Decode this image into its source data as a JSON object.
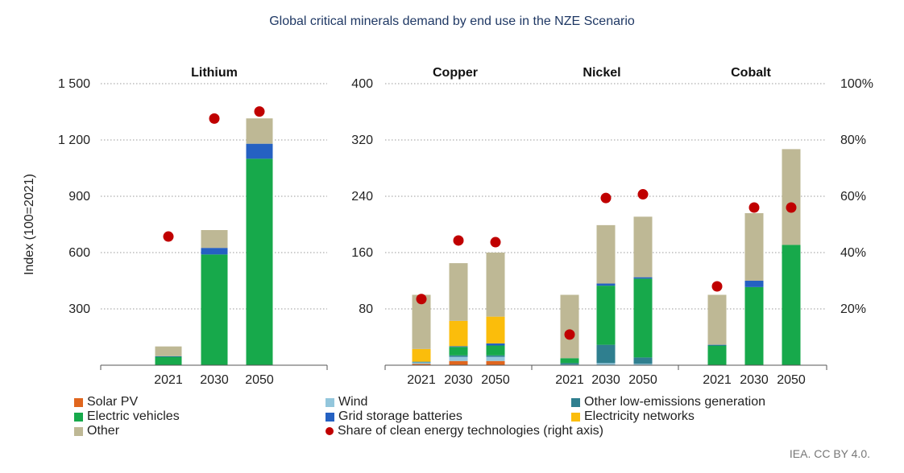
{
  "title": "Global critical minerals demand by end use in the NZE Scenario",
  "credit": "IEA. CC BY 4.0.",
  "colors": {
    "solar_pv": "#e0661e",
    "wind": "#93c6dc",
    "other_low_emissions": "#2f7f8f",
    "electric_vehicles": "#17a94b",
    "grid_storage": "#2561c2",
    "electricity_networks": "#fbbd0b",
    "other": "#beb895",
    "share": "#c00000",
    "gridline": "#999999",
    "axis": "#555555"
  },
  "legend": [
    {
      "key": "solar_pv",
      "label": "Solar PV",
      "kind": "square"
    },
    {
      "key": "wind",
      "label": "Wind",
      "kind": "square"
    },
    {
      "key": "other_low_emissions",
      "label": "Other low-emissions generation",
      "kind": "square"
    },
    {
      "key": "electric_vehicles",
      "label": "Electric vehicles",
      "kind": "square"
    },
    {
      "key": "grid_storage",
      "label": "Grid storage batteries",
      "kind": "square"
    },
    {
      "key": "electricity_networks",
      "label": "Electricity networks",
      "kind": "square"
    },
    {
      "key": "other",
      "label": "Other",
      "kind": "square"
    },
    {
      "key": "share",
      "label": "Share of clean energy technologies  (right axis)",
      "kind": "dot"
    }
  ],
  "chart_data": [
    {
      "type": "bar",
      "stacked": true,
      "panel": "Lithium",
      "ylabel": "Index (100=2021)",
      "ylim": [
        0,
        1500
      ],
      "yticks": [
        300,
        600,
        900,
        1200,
        1500
      ],
      "ytick_labels": [
        "300",
        "600",
        "900",
        "1 200",
        "1 500"
      ],
      "y2lim": [
        0,
        1
      ],
      "categories": [
        "2021",
        "2030",
        "2050"
      ],
      "series": [
        {
          "key": "solar_pv",
          "values": [
            0,
            0,
            0
          ]
        },
        {
          "key": "wind",
          "values": [
            0,
            0,
            0
          ]
        },
        {
          "key": "other_low_emissions",
          "values": [
            0,
            0,
            0
          ]
        },
        {
          "key": "electric_vehicles",
          "values": [
            45,
            590,
            1100
          ]
        },
        {
          "key": "grid_storage",
          "values": [
            3,
            35,
            80
          ]
        },
        {
          "key": "electricity_networks",
          "values": [
            0,
            0,
            0
          ]
        },
        {
          "key": "other",
          "values": [
            52,
            95,
            135
          ]
        }
      ],
      "share": [
        0.457,
        0.876,
        0.901
      ]
    },
    {
      "type": "bar",
      "stacked": true,
      "panel": "Copper",
      "ylim": [
        0,
        400
      ],
      "yticks": [
        80,
        160,
        240,
        320,
        400
      ],
      "ytick_labels": [
        "80",
        "160",
        "240",
        "320",
        "400"
      ],
      "y2lim": [
        0,
        1
      ],
      "y2ticks": [
        "20%",
        "40%",
        "60%",
        "80%",
        "100%"
      ],
      "categories": [
        "2021",
        "2030",
        "2050"
      ],
      "series": [
        {
          "key": "solar_pv",
          "values": [
            2,
            6,
            6
          ]
        },
        {
          "key": "wind",
          "values": [
            2,
            6,
            6
          ]
        },
        {
          "key": "other_low_emissions",
          "values": [
            1,
            2,
            2
          ]
        },
        {
          "key": "electric_vehicles",
          "values": [
            0,
            12,
            14
          ]
        },
        {
          "key": "grid_storage",
          "values": [
            0,
            1,
            3
          ]
        },
        {
          "key": "electricity_networks",
          "values": [
            18,
            36,
            38
          ]
        },
        {
          "key": "other",
          "values": [
            77,
            82,
            91
          ]
        }
      ],
      "share": [
        0.235,
        0.443,
        0.437
      ]
    },
    {
      "type": "bar",
      "stacked": true,
      "panel": "Nickel",
      "ylim": [
        0,
        400
      ],
      "y2lim": [
        0,
        1
      ],
      "categories": [
        "2021",
        "2030",
        "2050"
      ],
      "series": [
        {
          "key": "solar_pv",
          "values": [
            0,
            0,
            0
          ]
        },
        {
          "key": "wind",
          "values": [
            1,
            3,
            2
          ]
        },
        {
          "key": "other_low_emissions",
          "values": [
            2,
            26,
            9
          ]
        },
        {
          "key": "electric_vehicles",
          "values": [
            7,
            84,
            112
          ]
        },
        {
          "key": "grid_storage",
          "values": [
            0,
            3,
            2
          ]
        },
        {
          "key": "electricity_networks",
          "values": [
            0,
            0,
            0
          ]
        },
        {
          "key": "other",
          "values": [
            90,
            83,
            86
          ]
        }
      ],
      "share": [
        0.109,
        0.594,
        0.607
      ]
    },
    {
      "type": "bar",
      "stacked": true,
      "panel": "Cobalt",
      "ylim": [
        0,
        400
      ],
      "y2lim": [
        0,
        1
      ],
      "categories": [
        "2021",
        "2030",
        "2050"
      ],
      "series": [
        {
          "key": "solar_pv",
          "values": [
            0,
            0,
            0
          ]
        },
        {
          "key": "wind",
          "values": [
            0,
            0,
            0
          ]
        },
        {
          "key": "other_low_emissions",
          "values": [
            0,
            0,
            0
          ]
        },
        {
          "key": "electric_vehicles",
          "values": [
            28,
            111,
            171
          ]
        },
        {
          "key": "grid_storage",
          "values": [
            1,
            9,
            0
          ]
        },
        {
          "key": "electricity_networks",
          "values": [
            0,
            0,
            0
          ]
        },
        {
          "key": "other",
          "values": [
            71,
            96,
            136
          ]
        }
      ],
      "share": [
        0.28,
        0.56,
        0.56
      ]
    }
  ]
}
